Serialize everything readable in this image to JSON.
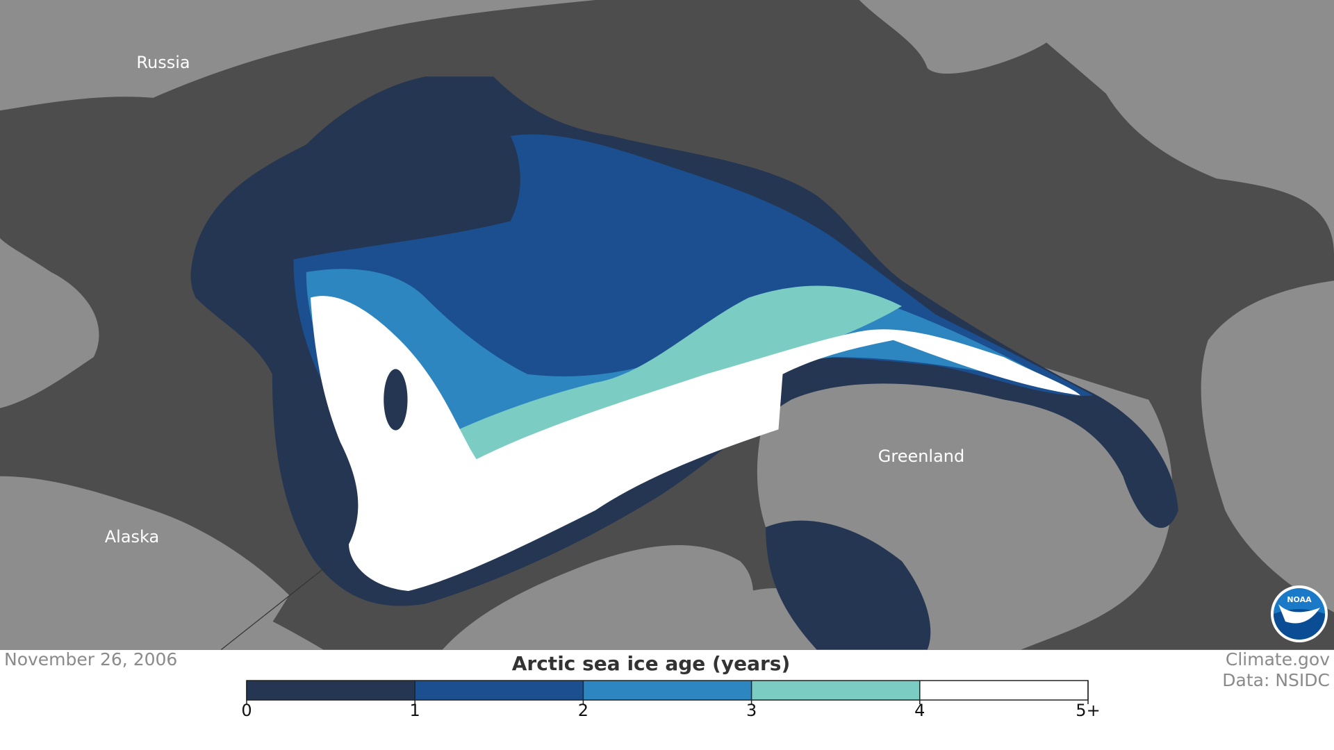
{
  "map": {
    "labels": [
      "Russia",
      "Alaska",
      "Greenland"
    ]
  },
  "date": "November 26, 2006",
  "legend": {
    "title": "Arctic sea ice age (years)",
    "colors": [
      "#243652",
      "#1b4f8f",
      "#2e86c1",
      "#7bcdc4",
      "#ffffff"
    ],
    "ticks": [
      0,
      1,
      2,
      3,
      4,
      {
        "value": 5,
        "label": "5+"
      }
    ]
  },
  "credits": [
    "Climate.gov",
    "Data: NSIDC"
  ],
  "logo": "NOAA"
}
